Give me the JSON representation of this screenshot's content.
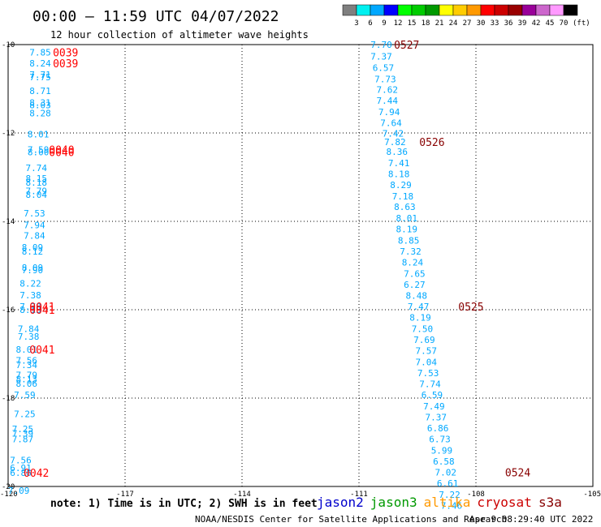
{
  "header": {
    "title": "00:00 – 11:59 UTC 04/07/2022",
    "subtitle": "12 hour collection of altimeter wave heights"
  },
  "colorbar": {
    "colors": [
      "#7f7f7f",
      "#00f0f0",
      "#00a8ff",
      "#0000ff",
      "#00ff00",
      "#00cc00",
      "#009900",
      "#ffff00",
      "#ffcc00",
      "#ff9900",
      "#ff0000",
      "#cc0000",
      "#990000",
      "#990099",
      "#cc66cc",
      "#ff99ff",
      "#000000"
    ],
    "labels": [
      "3",
      "6",
      "9",
      "12",
      "15",
      "18",
      "21",
      "24",
      "27",
      "30",
      "33",
      "36",
      "39",
      "42",
      "45",
      "70"
    ],
    "unit": "(ft)"
  },
  "footer": {
    "note": "note:  1) Time is in UTC; 2) SWH is in feet",
    "satellites": [
      {
        "name": "jason2",
        "color": "#0000cc"
      },
      {
        "name": "jason3",
        "color": "#009900"
      },
      {
        "name": "altika",
        "color": "#ff9900"
      },
      {
        "name": "cryosat",
        "color": "#cc0000"
      },
      {
        "name": "s3a",
        "color": "#880000"
      }
    ],
    "credit": "NOAA/NESDIS Center for Satellite Applications and Research",
    "timestamp": "Apr  9 08:29:40 UTC 2022"
  },
  "chart_data": {
    "type": "scatter",
    "xlim": [
      -120,
      -105
    ],
    "ylim": [
      -20,
      -10
    ],
    "xticks": [
      "-120",
      "-117",
      "-114",
      "-111",
      "-108",
      "-105"
    ],
    "yticks": [
      "-10",
      "-12",
      "-14",
      "-16",
      "-18",
      "-20"
    ],
    "xtick_values": [
      -120,
      -117,
      -114,
      -111,
      -108,
      -105
    ],
    "ytick_values": [
      -10,
      -12,
      -14,
      -16,
      -18,
      -20
    ],
    "grid": true,
    "value_color": "#00a8ff",
    "time_color_a": "#ff0000",
    "time_color_b": "#880000",
    "track_a": {
      "points": [
        {
          "x": -118.9,
          "y": -10.17,
          "v": "7.85"
        },
        {
          "x": -118.9,
          "y": -10.42,
          "v": "8.24"
        },
        {
          "x": -118.9,
          "y": -10.68,
          "v": "7.71"
        },
        {
          "x": -118.9,
          "y": -10.73,
          "v": "7.75"
        },
        {
          "x": -118.9,
          "y": -11.05,
          "v": "8.71"
        },
        {
          "x": -118.9,
          "y": -11.31,
          "v": "8.31"
        },
        {
          "x": -118.9,
          "y": -11.37,
          "v": "8.03"
        },
        {
          "x": -118.9,
          "y": -11.55,
          "v": "8.28"
        },
        {
          "x": -118.95,
          "y": -12.03,
          "v": "8.01"
        },
        {
          "x": -118.95,
          "y": -12.38,
          "v": "7.59"
        },
        {
          "x": -118.95,
          "y": -12.43,
          "v": "8.00"
        },
        {
          "x": -119.0,
          "y": -12.79,
          "v": "7.74"
        },
        {
          "x": -119.0,
          "y": -13.03,
          "v": "8.15"
        },
        {
          "x": -119.0,
          "y": -13.12,
          "v": "8.18"
        },
        {
          "x": -119.0,
          "y": -13.31,
          "v": "7.79"
        },
        {
          "x": -119.0,
          "y": -13.39,
          "v": "8.04"
        },
        {
          "x": -119.05,
          "y": -13.82,
          "v": "7.53"
        },
        {
          "x": -119.05,
          "y": -14.08,
          "v": "7.94"
        },
        {
          "x": -119.05,
          "y": -14.32,
          "v": "7.84"
        },
        {
          "x": -119.1,
          "y": -14.59,
          "v": "8.09"
        },
        {
          "x": -119.1,
          "y": -14.68,
          "v": "8.12"
        },
        {
          "x": -119.1,
          "y": -15.05,
          "v": "8.09"
        },
        {
          "x": -119.1,
          "y": -15.1,
          "v": "7.90"
        },
        {
          "x": -119.15,
          "y": -15.4,
          "v": "8.22"
        },
        {
          "x": -119.15,
          "y": -15.67,
          "v": "7.38"
        },
        {
          "x": -119.15,
          "y": -15.93,
          "v": "7.78"
        },
        {
          "x": -119.15,
          "y": -16.0,
          "v": "8.13"
        },
        {
          "x": -119.2,
          "y": -16.43,
          "v": "7.84"
        },
        {
          "x": -119.2,
          "y": -16.61,
          "v": "7.38"
        },
        {
          "x": -119.25,
          "y": -16.9,
          "v": "8.01"
        },
        {
          "x": -119.25,
          "y": -17.15,
          "v": "7.56"
        },
        {
          "x": -119.25,
          "y": -17.25,
          "v": "7.34"
        },
        {
          "x": -119.25,
          "y": -17.48,
          "v": "7.79"
        },
        {
          "x": -119.25,
          "y": -17.57,
          "v": "8.13"
        },
        {
          "x": -119.25,
          "y": -17.67,
          "v": "8.06"
        },
        {
          "x": -119.3,
          "y": -17.93,
          "v": "7.59"
        },
        {
          "x": -119.3,
          "y": -18.36,
          "v": "7.25"
        },
        {
          "x": -119.35,
          "y": -18.7,
          "v": "7.25"
        },
        {
          "x": -119.35,
          "y": -18.8,
          "v": "7.39"
        },
        {
          "x": -119.35,
          "y": -18.93,
          "v": "7.87"
        },
        {
          "x": -119.4,
          "y": -19.4,
          "v": "7.56"
        },
        {
          "x": -119.4,
          "y": -19.58,
          "v": "6.91"
        },
        {
          "x": -119.4,
          "y": -19.69,
          "v": "6.86"
        },
        {
          "x": -119.45,
          "y": -20.09,
          "v": "7.09"
        }
      ],
      "times": [
        {
          "x": -118.2,
          "y": -10.17,
          "t": "0039"
        },
        {
          "x": -118.2,
          "y": -10.42,
          "t": "0039"
        },
        {
          "x": -118.3,
          "y": -12.38,
          "t": "0040"
        },
        {
          "x": -118.3,
          "y": -12.43,
          "t": "0040"
        },
        {
          "x": -118.8,
          "y": -15.93,
          "t": "0041"
        },
        {
          "x": -118.8,
          "y": -16.0,
          "t": "0041"
        },
        {
          "x": -118.8,
          "y": -16.9,
          "t": "0041"
        },
        {
          "x": -118.95,
          "y": -19.69,
          "t": "0042"
        }
      ]
    },
    "track_b": {
      "points": [
        {
          "x": -110.15,
          "y": -10.0,
          "v": "7.70"
        },
        {
          "x": -110.15,
          "y": -10.27,
          "v": "7.37"
        },
        {
          "x": -110.1,
          "y": -10.52,
          "v": "6.57"
        },
        {
          "x": -110.05,
          "y": -10.78,
          "v": "7.73"
        },
        {
          "x": -110.0,
          "y": -11.02,
          "v": "7.62"
        },
        {
          "x": -110.0,
          "y": -11.27,
          "v": "7.44"
        },
        {
          "x": -109.95,
          "y": -11.52,
          "v": "7.94"
        },
        {
          "x": -109.9,
          "y": -11.77,
          "v": "7.64"
        },
        {
          "x": -109.85,
          "y": -12.01,
          "v": "7.42"
        },
        {
          "x": -109.8,
          "y": -12.2,
          "v": "7.82"
        },
        {
          "x": -109.75,
          "y": -12.42,
          "v": "8.36"
        },
        {
          "x": -109.7,
          "y": -12.68,
          "v": "7.41"
        },
        {
          "x": -109.7,
          "y": -12.93,
          "v": "8.18"
        },
        {
          "x": -109.65,
          "y": -13.17,
          "v": "8.29"
        },
        {
          "x": -109.6,
          "y": -13.43,
          "v": "7.18"
        },
        {
          "x": -109.55,
          "y": -13.67,
          "v": "8.63"
        },
        {
          "x": -109.5,
          "y": -13.93,
          "v": "8.01"
        },
        {
          "x": -109.5,
          "y": -14.17,
          "v": "8.19"
        },
        {
          "x": -109.45,
          "y": -14.43,
          "v": "8.85"
        },
        {
          "x": -109.4,
          "y": -14.68,
          "v": "7.32"
        },
        {
          "x": -109.35,
          "y": -14.93,
          "v": "8.24"
        },
        {
          "x": -109.3,
          "y": -15.18,
          "v": "7.65"
        },
        {
          "x": -109.3,
          "y": -15.43,
          "v": "6.27"
        },
        {
          "x": -109.25,
          "y": -15.68,
          "v": "8.48"
        },
        {
          "x": -109.2,
          "y": -15.93,
          "v": "7.47"
        },
        {
          "x": -109.15,
          "y": -16.17,
          "v": "8.19"
        },
        {
          "x": -109.1,
          "y": -16.43,
          "v": "7.50"
        },
        {
          "x": -109.05,
          "y": -16.68,
          "v": "7.69"
        },
        {
          "x": -109.0,
          "y": -16.93,
          "v": "7.57"
        },
        {
          "x": -109.0,
          "y": -17.18,
          "v": "7.04"
        },
        {
          "x": -108.95,
          "y": -17.43,
          "v": "7.53"
        },
        {
          "x": -108.9,
          "y": -17.68,
          "v": "7.74"
        },
        {
          "x": -108.85,
          "y": -17.93,
          "v": "6.59"
        },
        {
          "x": -108.8,
          "y": -18.18,
          "v": "7.49"
        },
        {
          "x": -108.75,
          "y": -18.43,
          "v": "7.37"
        },
        {
          "x": -108.7,
          "y": -18.68,
          "v": "6.86"
        },
        {
          "x": -108.65,
          "y": -18.93,
          "v": "6.73"
        },
        {
          "x": -108.6,
          "y": -19.18,
          "v": "5.99"
        },
        {
          "x": -108.55,
          "y": -19.43,
          "v": "6.58"
        },
        {
          "x": -108.5,
          "y": -19.68,
          "v": "7.02"
        },
        {
          "x": -108.45,
          "y": -19.93,
          "v": "6.61"
        },
        {
          "x": -108.4,
          "y": -20.18,
          "v": "7.22"
        },
        {
          "x": -108.35,
          "y": -20.43,
          "v": "7.46"
        }
      ],
      "times": [
        {
          "x": -109.45,
          "y": -10.0,
          "t": "0527"
        },
        {
          "x": -108.8,
          "y": -12.2,
          "t": "0526"
        },
        {
          "x": -107.8,
          "y": -15.93,
          "t": "0525"
        },
        {
          "x": -106.6,
          "y": -19.68,
          "t": "0524"
        }
      ]
    }
  }
}
